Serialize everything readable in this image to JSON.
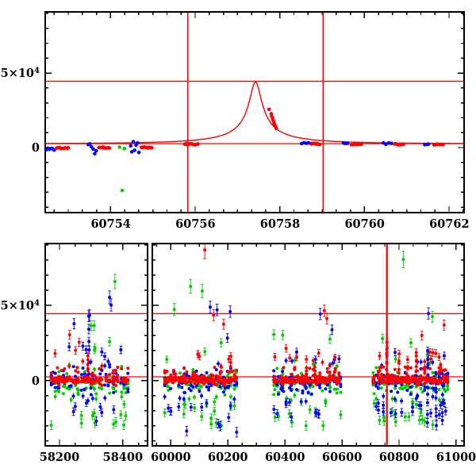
{
  "figure": {
    "background": "#ffffff",
    "axis_color": "#000000",
    "line_color": "#ff0000",
    "marker_colors": {
      "red": "#ff0000",
      "green": "#00cc00",
      "blue": "#0000ff"
    }
  },
  "chart_data": {
    "type": "scatter",
    "title": "",
    "xlabel": "",
    "ylabel": "",
    "noise_seed": 1337,
    "y_axis_labels": [
      {
        "value": 0,
        "text": "0",
        "sup": ""
      },
      {
        "value": 50000,
        "text": "5×10",
        "sup": "4"
      }
    ],
    "panels": [
      {
        "id": "zoom_panel",
        "x_range": [
          60752.45,
          60762.35
        ],
        "y_range": [
          -43600,
          91000
        ],
        "x_major_ticks": [
          60754,
          60756,
          60758,
          60760,
          60762
        ],
        "x_tick_labels": [
          "60754",
          "60756",
          "60758",
          "60760",
          "60762"
        ],
        "x_minor_step": 0.3333333,
        "y_major_ticks": [
          0,
          50000
        ],
        "y_minor_step": 10000,
        "show_y_labels": true,
        "show_x_labels": true,
        "horizontal_lines": [
          2600,
          44500
        ],
        "vertical_lines": [
          60755.82,
          60759.02
        ],
        "model_curve": {
          "type": "paczynski",
          "baseline": 2600,
          "peak": 44200,
          "t0": 60757.42,
          "tE": 2.6,
          "u0": 0.055
        },
        "point_clusters": [
          {
            "color": "blue",
            "t_start": 60752.47,
            "t_end": 60752.66,
            "n": 6,
            "v": -800,
            "spread": 1400
          },
          {
            "color": "red",
            "t_start": 60752.72,
            "t_end": 60753.0,
            "n": 9,
            "v": -300,
            "spread": 400
          },
          {
            "color": "blue",
            "t_start": 60753.47,
            "t_end": 60753.66,
            "n": 6,
            "v": 0,
            "spread": 4200
          },
          {
            "color": "red",
            "t_start": 60753.72,
            "t_end": 60753.97,
            "n": 9,
            "v": 0,
            "spread": 400
          },
          {
            "color": "green",
            "t_start": 60754.21,
            "t_end": 60754.32,
            "n": 2,
            "v": -800,
            "spread": 2400
          },
          {
            "color": "blue",
            "t_start": 60754.47,
            "t_end": 60754.66,
            "n": 7,
            "v": 500,
            "spread": 5200
          },
          {
            "color": "red",
            "t_start": 60754.72,
            "t_end": 60754.97,
            "n": 9,
            "v": 100,
            "spread": 400
          },
          {
            "color": "red",
            "t_start": 60755.75,
            "t_end": 60756.06,
            "n": 11,
            "v": 2300,
            "spread": 500
          },
          {
            "color": "blue",
            "t_start": 60758.51,
            "t_end": 60758.73,
            "n": 5,
            "v": 3300,
            "spread": 800
          },
          {
            "color": "red",
            "t_start": 60758.75,
            "t_end": 60758.94,
            "n": 7,
            "v": 2500,
            "spread": 450
          },
          {
            "color": "blue",
            "t_start": 60759.5,
            "t_end": 60759.6,
            "n": 3,
            "v": 2800,
            "spread": 600
          },
          {
            "color": "red",
            "t_start": 60759.69,
            "t_end": 60759.92,
            "n": 7,
            "v": 2400,
            "spread": 450
          },
          {
            "color": "blue",
            "t_start": 60760.44,
            "t_end": 60760.63,
            "n": 4,
            "v": 2700,
            "spread": 700
          },
          {
            "color": "red",
            "t_start": 60760.7,
            "t_end": 60760.91,
            "n": 7,
            "v": 2300,
            "spread": 450
          },
          {
            "color": "blue",
            "t_start": 60761.42,
            "t_end": 60761.51,
            "n": 3,
            "v": 2500,
            "spread": 600
          },
          {
            "color": "red",
            "t_start": 60761.64,
            "t_end": 60761.85,
            "n": 7,
            "v": 2200,
            "spread": 450
          }
        ],
        "points": [
          {
            "color": "green",
            "t": 60754.27,
            "v": -28700
          },
          {
            "color": "red",
            "t": 60757.74,
            "v": 25700
          },
          {
            "color": "red",
            "t": 60757.79,
            "v": 22700
          },
          {
            "color": "red",
            "t": 60757.8,
            "v": 21400
          },
          {
            "color": "red",
            "t": 60757.82,
            "v": 20100
          },
          {
            "color": "red",
            "t": 60757.83,
            "v": 18800
          },
          {
            "color": "red",
            "t": 60757.85,
            "v": 17400
          },
          {
            "color": "red",
            "t": 60757.86,
            "v": 16100
          },
          {
            "color": "red",
            "t": 60757.88,
            "v": 14800
          },
          {
            "color": "red",
            "t": 60757.9,
            "v": 13700
          },
          {
            "color": "red",
            "t": 60757.91,
            "v": 12900
          }
        ]
      },
      {
        "id": "full_panel_left",
        "x_range": [
          58155,
          58478
        ],
        "y_range": [
          -43200,
          91000
        ],
        "x_major_ticks": [
          58200,
          58400
        ],
        "x_tick_labels": [
          "58200",
          "58400"
        ],
        "x_minor_step": 50,
        "y_major_ticks": [
          0,
          50000
        ],
        "y_minor_step": 10000,
        "show_y_labels": true,
        "show_x_labels": true,
        "horizontal_lines": [
          2600,
          44500
        ],
        "vertical_lines": [],
        "season_indices": [
          0
        ]
      },
      {
        "id": "full_panel_right",
        "x_range": [
          59935,
          61028
        ],
        "y_range": [
          -43200,
          91000
        ],
        "x_major_ticks": [
          60000,
          60200,
          60400,
          60600,
          60800,
          61000
        ],
        "x_tick_labels": [
          "60000",
          "60200",
          "60400",
          "60600",
          "60800",
          "61000"
        ],
        "x_minor_step": 50,
        "y_major_ticks": [
          0,
          50000
        ],
        "y_minor_step": 10000,
        "show_y_labels": false,
        "show_x_labels": true,
        "horizontal_lines": [
          2600,
          44500
        ],
        "vertical_lines": [
          60757.4
        ],
        "season_indices": [
          1,
          2,
          3
        ]
      }
    ],
    "seasons": [
      {
        "t_start": 58172,
        "t_end": 58420,
        "nights": 40
      },
      {
        "t_start": 59978,
        "t_end": 60232,
        "nights": 40
      },
      {
        "t_start": 60358,
        "t_end": 60600,
        "nights": 40
      },
      {
        "t_start": 60706,
        "t_end": 60975,
        "nights": 46
      }
    ],
    "streaks": [
      {
        "color": "red",
        "t": 60757.4,
        "v_min": 3000,
        "v_max": 26000,
        "n": 8
      },
      {
        "color": "blue",
        "t": 60900,
        "v_min": -28000,
        "v_max": 20000,
        "n": 9
      },
      {
        "color": "red",
        "t": 60800,
        "v_min": 2000,
        "v_max": 17000,
        "n": 6
      },
      {
        "color": "red",
        "t": 60830,
        "v_min": 2000,
        "v_max": 14000,
        "n": 5
      },
      {
        "color": "red",
        "t": 60860,
        "v_min": 2000,
        "v_max": 19000,
        "n": 6
      },
      {
        "color": "red",
        "t": 60890,
        "v_min": 2000,
        "v_max": 12000,
        "n": 5
      },
      {
        "color": "blue",
        "t": 60930,
        "v_min": -30000,
        "v_max": 5000,
        "n": 7
      },
      {
        "color": "blue",
        "t": 60952,
        "v_min": -26000,
        "v_max": 3000,
        "n": 6
      },
      {
        "color": "red",
        "t": 60475,
        "v_min": 2000,
        "v_max": 12000,
        "n": 5
      },
      {
        "color": "red",
        "t": 60505,
        "v_min": 2000,
        "v_max": 9000,
        "n": 4
      },
      {
        "color": "red",
        "t": 60210,
        "v_min": 2000,
        "v_max": 15000,
        "n": 5
      },
      {
        "color": "red",
        "t": 58290,
        "v_min": 2000,
        "v_max": 16000,
        "n": 6
      },
      {
        "color": "blue",
        "t": 58293,
        "v_min": 4000,
        "v_max": 43000,
        "n": 6
      },
      {
        "color": "green",
        "t": 58310,
        "v_min": -20000,
        "v_max": 36000,
        "n": 5
      }
    ],
    "outliers": [
      {
        "color": "green",
        "t": 58375,
        "v": 65800
      },
      {
        "color": "blue",
        "t": 58358,
        "v": 55300
      },
      {
        "color": "blue",
        "t": 58363,
        "v": 50200
      },
      {
        "color": "blue",
        "t": 58295,
        "v": 43500
      },
      {
        "color": "green",
        "t": 58300,
        "v": 36500
      },
      {
        "color": "red",
        "t": 58232,
        "v": 30500
      },
      {
        "color": "red",
        "t": 58262,
        "v": 25500
      },
      {
        "color": "blue",
        "t": 58246,
        "v": 37800
      },
      {
        "color": "red",
        "t": 60119,
        "v": 86800
      },
      {
        "color": "green",
        "t": 60069,
        "v": 62600
      },
      {
        "color": "green",
        "t": 60110,
        "v": 59500
      },
      {
        "color": "blue",
        "t": 60138,
        "v": 48800
      },
      {
        "color": "blue",
        "t": 60162,
        "v": 47000
      },
      {
        "color": "blue",
        "t": 60208,
        "v": 45800
      },
      {
        "color": "red",
        "t": 60150,
        "v": 43500
      },
      {
        "color": "red",
        "t": 60185,
        "v": 37500
      },
      {
        "color": "green",
        "t": 60012,
        "v": 47300
      },
      {
        "color": "red",
        "t": 60538,
        "v": 46500
      },
      {
        "color": "red",
        "t": 60547,
        "v": 41200
      },
      {
        "color": "blue",
        "t": 60524,
        "v": 44300
      },
      {
        "color": "blue",
        "t": 60565,
        "v": 33800
      },
      {
        "color": "green",
        "t": 60392,
        "v": 30300
      },
      {
        "color": "green",
        "t": 60815,
        "v": 80500
      },
      {
        "color": "blue",
        "t": 60903,
        "v": 44600
      },
      {
        "color": "green",
        "t": 60917,
        "v": 42500
      },
      {
        "color": "red",
        "t": 60958,
        "v": 36900
      },
      {
        "color": "red",
        "t": 60880,
        "v": 30000
      },
      {
        "color": "green",
        "t": 60742,
        "v": 28000
      }
    ]
  }
}
